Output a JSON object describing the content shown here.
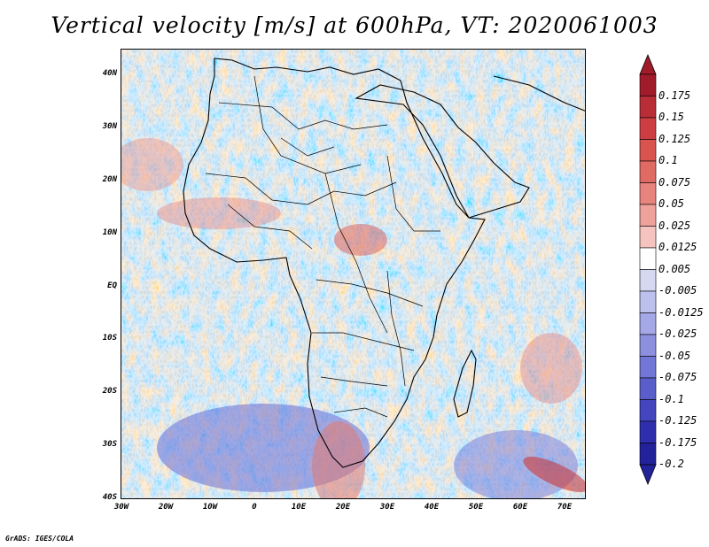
{
  "title": "Vertical velocity [m/s] at 600hPa, VT: 2020061003",
  "footer": "GrADS: IGES/COLA",
  "lat_labels": [
    "40N",
    "30N",
    "20N",
    "10N",
    "EQ",
    "10S",
    "20S",
    "30S",
    "40S"
  ],
  "lon_labels": [
    "30W",
    "20W",
    "10W",
    "0",
    "10E",
    "20E",
    "30E",
    "40E",
    "50E",
    "60E",
    "70E"
  ],
  "colorbar": {
    "labels": [
      "0.175",
      "0.15",
      "0.125",
      "0.1",
      "0.075",
      "0.05",
      "0.025",
      "0.0125",
      "0.005",
      "-0.005",
      "-0.0125",
      "-0.025",
      "-0.05",
      "-0.075",
      "-0.1",
      "-0.125",
      "-0.175",
      "-0.2"
    ],
    "colors": [
      "#a01c2a",
      "#b82d36",
      "#cc3e42",
      "#d9544f",
      "#e06a64",
      "#e8847e",
      "#efa29c",
      "#f5c4c0",
      "#ffffff",
      "#d6d8f2",
      "#bcc0ec",
      "#a4a8e6",
      "#8c90df",
      "#7276d6",
      "#5a5ecb",
      "#4346bd",
      "#2f2fae",
      "#22229a"
    ]
  }
}
